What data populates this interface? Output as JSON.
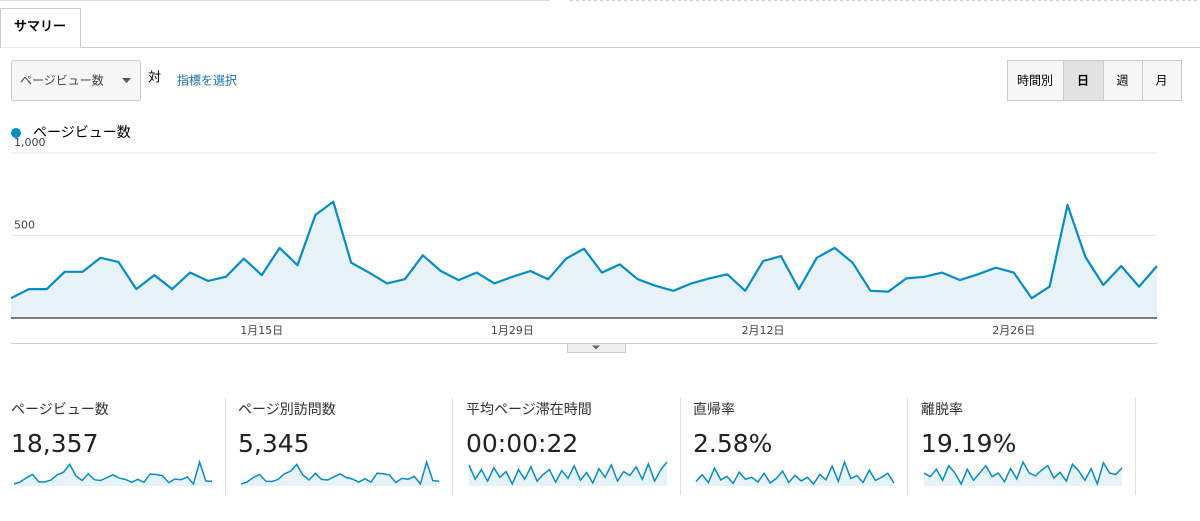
{
  "tabs": [
    "サマリー"
  ],
  "controls": {
    "metric_select": "ページビュー数",
    "versus": "対",
    "select_metric_link": "指標を選択",
    "granularity": [
      "時間別",
      "日",
      "週",
      "月"
    ],
    "active_granularity": 1
  },
  "chart_data": {
    "type": "line",
    "categories": [
      null,
      null,
      null,
      null,
      null,
      null,
      null,
      null,
      null,
      null,
      null,
      null,
      null,
      null,
      "1月15日",
      null,
      null,
      null,
      null,
      null,
      null,
      null,
      null,
      null,
      null,
      null,
      null,
      null,
      "1月29日",
      null,
      null,
      null,
      null,
      null,
      null,
      null,
      null,
      null,
      null,
      null,
      null,
      null,
      "2月12日",
      null,
      null,
      null,
      null,
      null,
      null,
      null,
      null,
      null,
      null,
      null,
      null,
      null,
      "2月26日",
      null,
      null,
      null,
      null,
      null,
      null,
      null,
      null
    ],
    "series": [
      {
        "name": "ページビュー数",
        "color": "#058dc7",
        "values": [
          120,
          175,
          175,
          280,
          280,
          365,
          340,
          175,
          260,
          175,
          275,
          225,
          250,
          360,
          260,
          425,
          320,
          625,
          705,
          335,
          275,
          210,
          235,
          380,
          285,
          230,
          275,
          210,
          250,
          285,
          235,
          360,
          420,
          275,
          325,
          235,
          195,
          165,
          210,
          240,
          265,
          165,
          345,
          375,
          175,
          365,
          425,
          335,
          165,
          160,
          240,
          250,
          275,
          230,
          265,
          305,
          275,
          120,
          190,
          685,
          370,
          200,
          315,
          190,
          315
        ]
      }
    ],
    "ylim": [
      0,
      1000
    ],
    "yticks": [
      500,
      {
        "value": 1000,
        "label": "1,000"
      }
    ],
    "grid": true,
    "area_color": "#e8f3f9"
  },
  "metrics": [
    {
      "label": "ページビュー数",
      "value": "18,357",
      "sparkline": [
        121,
        176,
        279,
        364,
        176,
        176,
        224,
        358,
        424,
        624,
        333,
        212,
        382,
        230,
        212,
        285,
        358,
        273,
        236,
        164,
        242,
        164,
        376,
        364,
        333,
        158,
        248,
        230,
        303,
        121,
        685,
        200,
        188
      ]
    },
    {
      "label": "ページ別訪問数",
      "value": "5,345",
      "sparkline": [
        95,
        130,
        200,
        250,
        140,
        135,
        170,
        260,
        300,
        410,
        240,
        160,
        270,
        170,
        160,
        210,
        260,
        200,
        175,
        125,
        180,
        125,
        270,
        260,
        240,
        120,
        185,
        170,
        220,
        95,
        450,
        150,
        140
      ]
    },
    {
      "label": "平均ページ滞在時間",
      "value": "00:00:22",
      "sparkline": [
        35,
        20,
        30,
        18,
        32,
        22,
        28,
        15,
        30,
        20,
        33,
        18,
        25,
        30,
        17,
        29,
        21,
        34,
        19,
        27,
        16,
        31,
        22,
        35,
        18,
        28,
        24,
        33,
        20,
        36,
        18,
        30,
        38
      ]
    },
    {
      "label": "直帰率",
      "value": "2.58%",
      "sparkline": [
        1.2,
        2.5,
        1.0,
        3.8,
        1.5,
        2.2,
        0.8,
        3.0,
        1.6,
        2.0,
        1.1,
        2.8,
        0.9,
        1.8,
        3.2,
        1.0,
        2.4,
        1.3,
        2.0,
        0.7,
        2.6,
        1.5,
        4.2,
        1.2,
        5.0,
        1.8,
        2.3,
        1.0,
        3.4,
        1.4,
        2.0,
        2.8,
        0.9
      ]
    },
    {
      "label": "離脱率",
      "value": "19.19%",
      "sparkline": [
        19,
        18.5,
        19.5,
        18,
        20,
        19,
        17.5,
        19.5,
        18,
        19,
        20,
        18.5,
        19,
        17.8,
        19.6,
        18.2,
        20.5,
        19,
        18.6,
        19.4,
        20,
        18.3,
        19.1,
        17.9,
        20.2,
        19.3,
        18,
        19.6,
        17.5,
        20.4,
        19,
        18.8,
        19.7
      ]
    }
  ]
}
